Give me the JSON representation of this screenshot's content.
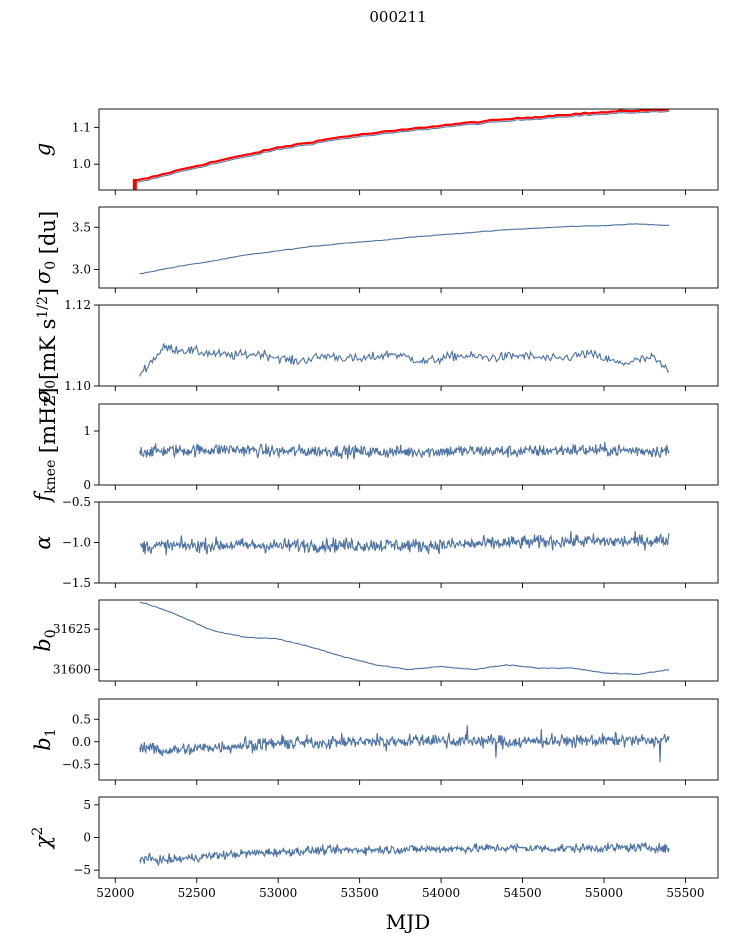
{
  "figure": {
    "title": "000211",
    "xlabel": "MJD"
  },
  "colors": {
    "series": "#4c72a4",
    "overlay": "#ff0000",
    "axis": "#000000"
  },
  "chart_data": [
    {
      "type": "line",
      "ylabel": "g",
      "ylabel_sub": "",
      "xlim": [
        51900,
        55700
      ],
      "ylim": [
        0.93,
        1.15
      ],
      "yticks": [
        1.0,
        1.1
      ],
      "yticklabels": [
        "1.0",
        "1.1"
      ],
      "overlay_color": "#ff0000",
      "series": [
        {
          "x": [
            52120,
            52200,
            52400,
            52600,
            52800,
            53000,
            53200,
            53400,
            53600,
            53800,
            54000,
            54200,
            54400,
            54600,
            54800,
            55000,
            55200,
            55400
          ],
          "values": [
            0.955,
            0.962,
            0.985,
            1.006,
            1.025,
            1.045,
            1.06,
            1.075,
            1.085,
            1.095,
            1.105,
            1.114,
            1.122,
            1.129,
            1.136,
            1.141,
            1.146,
            1.148
          ]
        }
      ]
    },
    {
      "type": "line",
      "ylabel": "σ",
      "ylabel_sub": "0",
      "ylabel_suffix": " [du]",
      "xlim": [
        51900,
        55700
      ],
      "ylim": [
        2.78,
        3.74
      ],
      "yticks": [
        3.0,
        3.5
      ],
      "yticklabels": [
        "3.0",
        "3.5"
      ],
      "series": [
        {
          "x": [
            52150,
            52400,
            52600,
            52800,
            53000,
            53200,
            53400,
            53600,
            53800,
            54000,
            54200,
            54400,
            54600,
            54800,
            55000,
            55200,
            55400
          ],
          "values": [
            2.95,
            3.04,
            3.1,
            3.17,
            3.22,
            3.27,
            3.31,
            3.34,
            3.38,
            3.41,
            3.44,
            3.47,
            3.49,
            3.51,
            3.52,
            3.54,
            3.52
          ]
        }
      ]
    },
    {
      "type": "line",
      "ylabel": "σ",
      "ylabel_sub": "0",
      "ylabel_suffix": "[mK s",
      "ylabel_sup": "1/2",
      "ylabel_end": "]",
      "xlim": [
        51900,
        55700
      ],
      "ylim": [
        1.1,
        1.12
      ],
      "yticks": [
        1.1,
        1.12
      ],
      "yticklabels": [
        "1.10",
        "1.12"
      ],
      "series": [
        {
          "x": [
            52150,
            52300,
            52500,
            52700,
            52900,
            53100,
            53300,
            53500,
            53700,
            53900,
            54100,
            54300,
            54500,
            54700,
            54900,
            55100,
            55300,
            55400
          ],
          "values": [
            1.103,
            1.1095,
            1.1085,
            1.1075,
            1.108,
            1.106,
            1.1075,
            1.1065,
            1.108,
            1.106,
            1.1075,
            1.107,
            1.1075,
            1.1065,
            1.108,
            1.1055,
            1.107,
            1.1035
          ]
        }
      ]
    },
    {
      "type": "line",
      "ylabel": "f",
      "ylabel_sub": "knee",
      "ylabel_suffix": " [mHz]",
      "xlim": [
        51900,
        55700
      ],
      "ylim": [
        0,
        1.5
      ],
      "yticks": [
        0,
        1
      ],
      "yticklabels": [
        "0",
        "1"
      ],
      "series": [
        {
          "x": [
            52150,
            52400,
            52700,
            53000,
            53300,
            53600,
            53900,
            54200,
            54500,
            54800,
            55100,
            55400
          ],
          "values": [
            0.62,
            0.64,
            0.66,
            0.62,
            0.63,
            0.61,
            0.62,
            0.63,
            0.62,
            0.65,
            0.64,
            0.63
          ]
        }
      ]
    },
    {
      "type": "line",
      "ylabel": "α",
      "ylabel_sub": "",
      "xlim": [
        51900,
        55700
      ],
      "ylim": [
        -1.5,
        -0.5
      ],
      "yticks": [
        -1.5,
        -1.0,
        -0.5
      ],
      "yticklabels": [
        "−1.5",
        "−1.0",
        "−0.5"
      ],
      "series": [
        {
          "x": [
            52150,
            52400,
            52700,
            53000,
            53300,
            53600,
            53900,
            54200,
            54500,
            54800,
            55100,
            55400
          ],
          "values": [
            -1.05,
            -1.04,
            -1.03,
            -1.04,
            -1.03,
            -1.03,
            -1.04,
            -1.02,
            -1.0,
            -0.98,
            -0.99,
            -0.97
          ]
        }
      ]
    },
    {
      "type": "line",
      "ylabel": "b",
      "ylabel_sub": "0",
      "xlim": [
        51900,
        55700
      ],
      "ylim": [
        31593,
        31643
      ],
      "yticks": [
        31600,
        31625
      ],
      "yticklabels": [
        "31600",
        "31625"
      ],
      "series": [
        {
          "x": [
            52150,
            52300,
            52400,
            52600,
            52800,
            53000,
            53200,
            53400,
            53600,
            53800,
            54000,
            54200,
            54400,
            54600,
            54800,
            55000,
            55200,
            55400
          ],
          "values": [
            31642,
            31637,
            31633,
            31624,
            31620,
            31619,
            31614,
            31608,
            31603,
            31600,
            31602,
            31600,
            31603,
            31601,
            31601,
            31598,
            31597,
            31600
          ]
        }
      ]
    },
    {
      "type": "line",
      "ylabel": "b",
      "ylabel_sub": "1",
      "xlim": [
        51900,
        55700
      ],
      "ylim": [
        -0.85,
        0.95
      ],
      "yticks": [
        -0.5,
        0.0,
        0.5
      ],
      "yticklabels": [
        "−0.5",
        "0.0",
        "0.5"
      ],
      "series": [
        {
          "x": [
            52150,
            52300,
            52600,
            52900,
            53200,
            53500,
            53800,
            54100,
            54400,
            54700,
            55000,
            55300,
            55400
          ],
          "values": [
            -0.1,
            -0.2,
            -0.12,
            -0.05,
            -0.02,
            0.0,
            0.02,
            0.03,
            0.0,
            0.01,
            0.03,
            0.02,
            0.05
          ]
        }
      ]
    },
    {
      "type": "line",
      "ylabel": "χ",
      "ylabel_sub": "",
      "ylabel_sup": "2",
      "xlim": [
        51900,
        55700
      ],
      "ylim": [
        -6.2,
        6.2
      ],
      "yticks": [
        -5,
        0,
        5
      ],
      "yticklabels": [
        "−5",
        "0",
        "5"
      ],
      "xticks": [
        52000,
        52500,
        53000,
        53500,
        54000,
        54500,
        55000,
        55500
      ],
      "xticklabels": [
        "52000",
        "52500",
        "53000",
        "53500",
        "54000",
        "54500",
        "55000",
        "55500"
      ],
      "series": [
        {
          "x": [
            52150,
            52300,
            52600,
            52900,
            53200,
            53500,
            53800,
            54100,
            54400,
            54700,
            55000,
            55300,
            55400
          ],
          "values": [
            -3.2,
            -3.5,
            -2.8,
            -2.3,
            -2.0,
            -1.9,
            -1.8,
            -1.7,
            -1.6,
            -1.7,
            -1.6,
            -1.5,
            -1.8
          ]
        }
      ]
    }
  ]
}
